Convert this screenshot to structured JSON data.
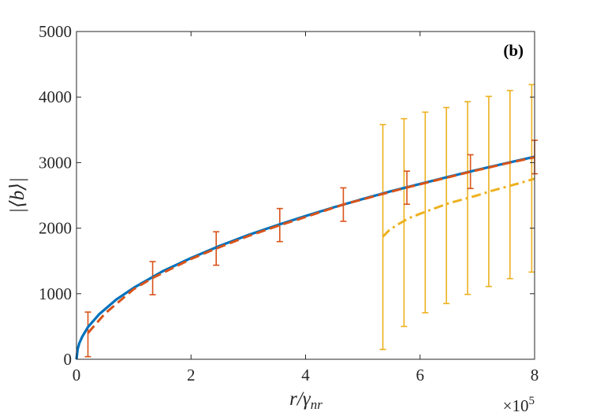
{
  "chart_data": {
    "type": "line",
    "panel_label": "(b)",
    "xlabel": "r/γ",
    "xlabel_sub": "nr",
    "ylabel": "|⟨b⟩|",
    "x_exponent_base": "×10",
    "x_exponent_power": "5",
    "xlim": [
      0,
      800000
    ],
    "ylim": [
      0,
      5000
    ],
    "x_scale_display": 100000,
    "xticks": [
      0,
      200000,
      400000,
      600000,
      800000
    ],
    "xtick_labels": [
      "0",
      "2",
      "4",
      "6",
      "8"
    ],
    "yticks": [
      0,
      1000,
      2000,
      3000,
      4000,
      5000
    ],
    "ytick_labels": [
      "0",
      "1000",
      "2000",
      "3000",
      "4000",
      "5000"
    ],
    "grid": false,
    "series": [
      {
        "style": "solid",
        "color": "#0072BD",
        "x": [
          0,
          2000,
          5000,
          10000,
          20000,
          40000,
          70000,
          100000,
          150000,
          200000,
          250000,
          300000,
          350000,
          400000,
          450000,
          500000,
          550000,
          600000,
          650000,
          700000,
          750000,
          800000
        ],
        "y": [
          0,
          155,
          245,
          345,
          490,
          690,
          915,
          1090,
          1340,
          1545,
          1730,
          1895,
          2045,
          2185,
          2320,
          2445,
          2565,
          2675,
          2785,
          2890,
          2990,
          3090
        ]
      },
      {
        "style": "dashed",
        "color": "#D95319",
        "x": [
          20000,
          50000,
          100000,
          133000,
          200000,
          244000,
          300000,
          355000,
          400000,
          466000,
          500000,
          577000,
          600000,
          688000,
          750000,
          800000
        ],
        "y": [
          400,
          700,
          1070,
          1240,
          1530,
          1690,
          1880,
          2045,
          2170,
          2360,
          2440,
          2620,
          2670,
          2860,
          2985,
          3080
        ],
        "error_bars": [
          {
            "x": 20000,
            "y": 400,
            "low": 40,
            "high": 720
          },
          {
            "x": 133000,
            "y": 1240,
            "low": 985,
            "high": 1490
          },
          {
            "x": 244000,
            "y": 1690,
            "low": 1435,
            "high": 1945
          },
          {
            "x": 355000,
            "y": 2045,
            "low": 1795,
            "high": 2300
          },
          {
            "x": 466000,
            "y": 2360,
            "low": 2105,
            "high": 2615
          },
          {
            "x": 577000,
            "y": 2620,
            "low": 2365,
            "high": 2870
          },
          {
            "x": 688000,
            "y": 2860,
            "low": 2605,
            "high": 3120
          },
          {
            "x": 800000,
            "y": 3080,
            "low": 2830,
            "high": 3340
          }
        ]
      },
      {
        "style": "dashdot",
        "color": "#EDB120",
        "x": [
          535000,
          545000,
          560000,
          580000,
          600000,
          625000,
          650000,
          675000,
          700000,
          725000,
          750000,
          775000,
          800000
        ],
        "y": [
          1870,
          1960,
          2050,
          2150,
          2220,
          2300,
          2380,
          2440,
          2500,
          2570,
          2630,
          2690,
          2755
        ],
        "error_bars": [
          {
            "x": 535000,
            "y": 1870,
            "low": 150,
            "high": 3580
          },
          {
            "x": 572000,
            "y": 2120,
            "low": 500,
            "high": 3670
          },
          {
            "x": 609000,
            "y": 2240,
            "low": 710,
            "high": 3770
          },
          {
            "x": 646000,
            "y": 2350,
            "low": 850,
            "high": 3840
          },
          {
            "x": 683000,
            "y": 2460,
            "low": 990,
            "high": 3930
          },
          {
            "x": 720000,
            "y": 2560,
            "low": 1110,
            "high": 4010
          },
          {
            "x": 757000,
            "y": 2650,
            "low": 1230,
            "high": 4100
          },
          {
            "x": 795000,
            "y": 2750,
            "low": 1330,
            "high": 4190
          }
        ]
      }
    ]
  }
}
